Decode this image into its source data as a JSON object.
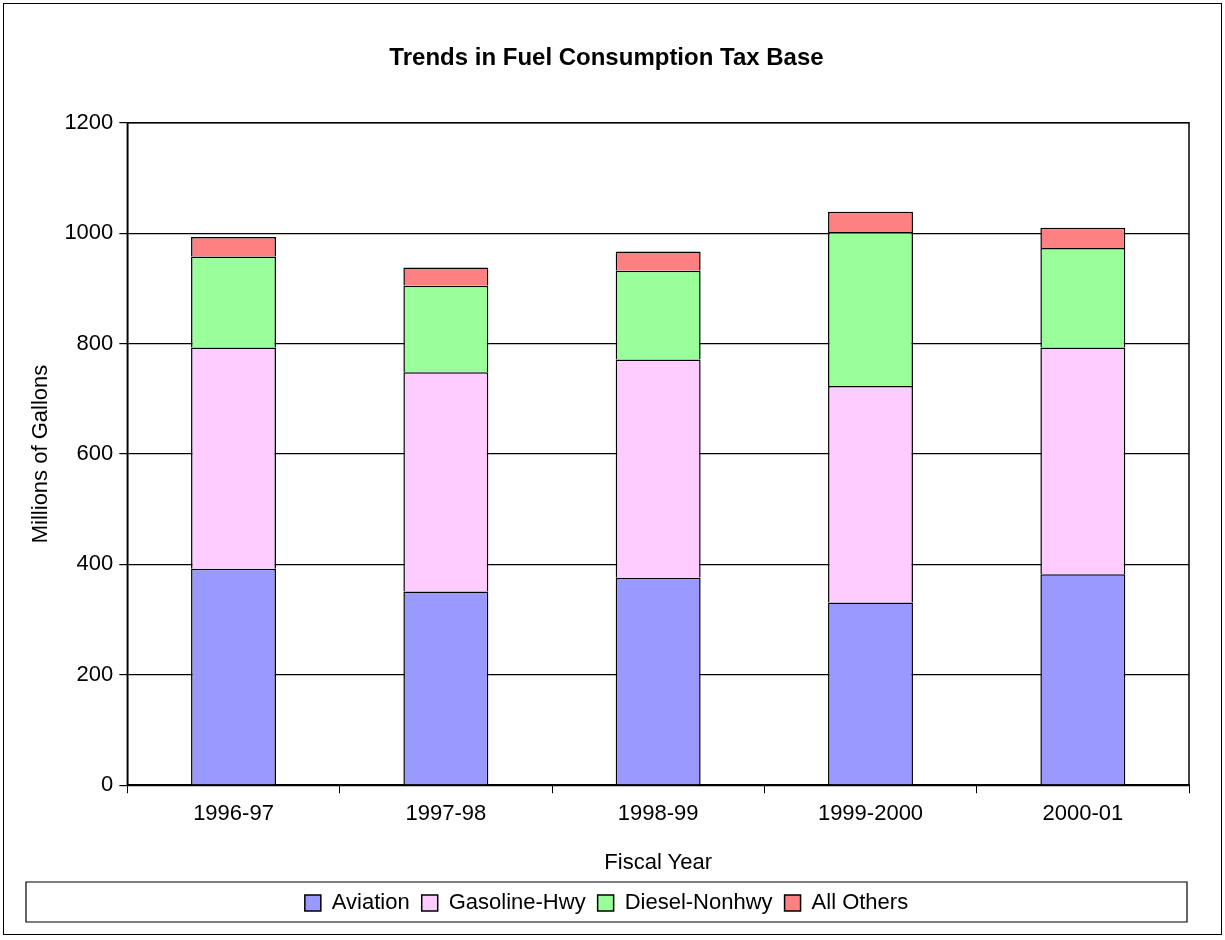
{
  "chart_data": {
    "type": "bar",
    "title": "Trends in Fuel Consumption Tax Base",
    "xlabel": "Fiscal Year",
    "ylabel": "Millions of Gallons",
    "categories": [
      "1996-97",
      "1997-98",
      "1998-99",
      "1999-2000",
      "2000-01"
    ],
    "stacked": true,
    "series": [
      {
        "name": "Aviation",
        "color": "#9999ff",
        "values": [
          392,
          351,
          376,
          331,
          382
        ]
      },
      {
        "name": "Gasoline-Hwy",
        "color": "#ffccff",
        "values": [
          401,
          397,
          395,
          392,
          411
        ]
      },
      {
        "name": "Diesel-Nonhwy",
        "color": "#99ff99",
        "values": [
          165,
          157,
          161,
          279,
          180
        ]
      },
      {
        "name": "All Others",
        "color": "#ff8080",
        "values": [
          35,
          33,
          35,
          37,
          37
        ]
      }
    ],
    "ylim": [
      0,
      1200
    ],
    "yticks": [
      0,
      200,
      400,
      600,
      800,
      1000,
      1200
    ],
    "grid": "y",
    "legend": "bottom"
  }
}
